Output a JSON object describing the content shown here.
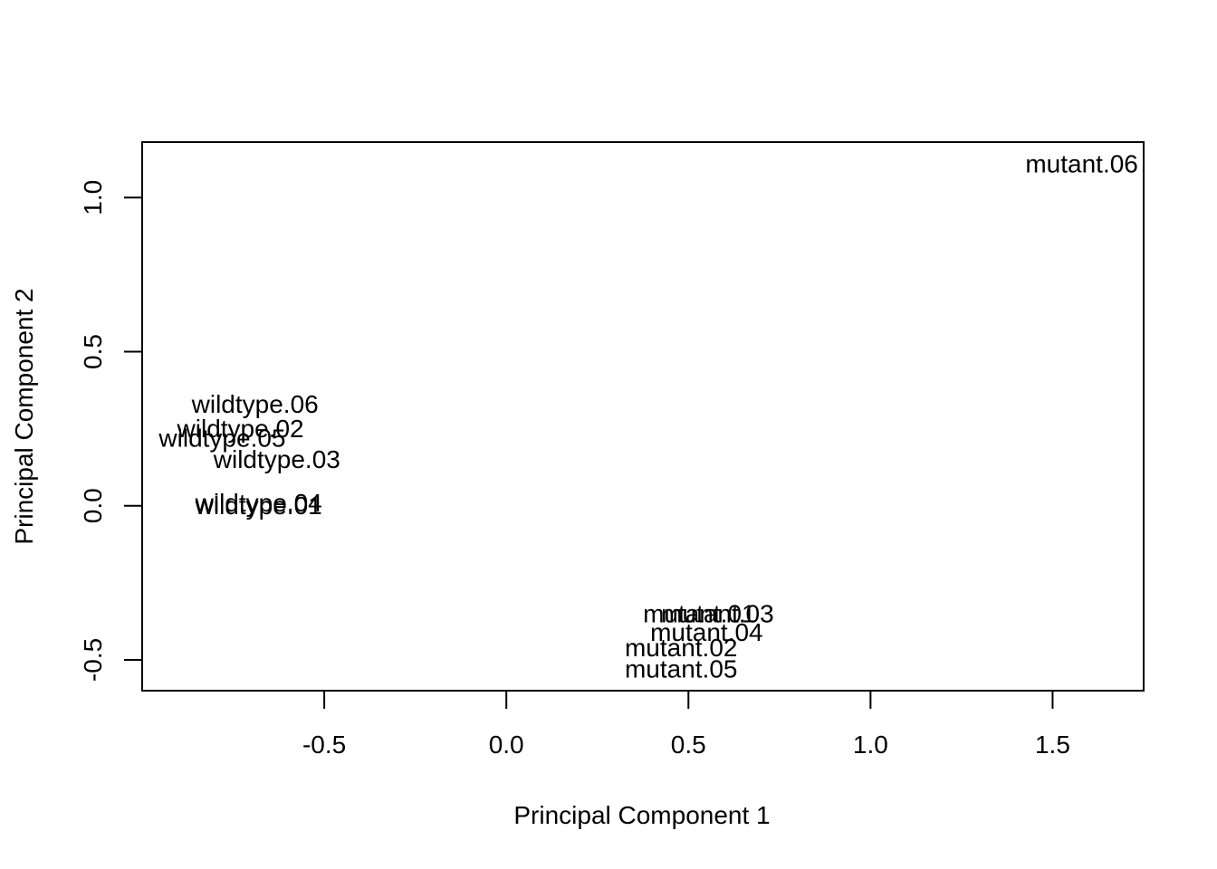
{
  "chart_data": {
    "type": "scatter",
    "title": "",
    "xlabel": "Principal Component 1",
    "ylabel": "Principal Component 2",
    "xlim": [
      -1.0,
      1.75
    ],
    "ylim": [
      -0.6,
      1.18
    ],
    "xticks": [
      -0.5,
      0.0,
      0.5,
      1.0,
      1.5
    ],
    "xtick_labels": [
      "-0.5",
      "0.0",
      "0.5",
      "1.0",
      "1.5"
    ],
    "yticks": [
      -0.5,
      0.0,
      0.5,
      1.0
    ],
    "ytick_labels": [
      "-0.5",
      "0.0",
      "0.5",
      "1.0"
    ],
    "grid": false,
    "markers": "text labels at point positions",
    "points": [
      {
        "label": "wildtype.01",
        "x": -0.68,
        "y": 0.0
      },
      {
        "label": "wildtype.02",
        "x": -0.73,
        "y": 0.25
      },
      {
        "label": "wildtype.03",
        "x": -0.63,
        "y": 0.15
      },
      {
        "label": "wildtype.04",
        "x": -0.68,
        "y": 0.01
      },
      {
        "label": "wildtype.05",
        "x": -0.78,
        "y": 0.22
      },
      {
        "label": "wildtype.06",
        "x": -0.69,
        "y": 0.33
      },
      {
        "label": "mutant.01",
        "x": 0.53,
        "y": -0.35
      },
      {
        "label": "mutant.02",
        "x": 0.48,
        "y": -0.46
      },
      {
        "label": "mutant.03",
        "x": 0.58,
        "y": -0.35
      },
      {
        "label": "mutant.04",
        "x": 0.55,
        "y": -0.41
      },
      {
        "label": "mutant.05",
        "x": 0.48,
        "y": -0.53
      },
      {
        "label": "mutant.06",
        "x": 1.58,
        "y": 1.11
      }
    ]
  }
}
